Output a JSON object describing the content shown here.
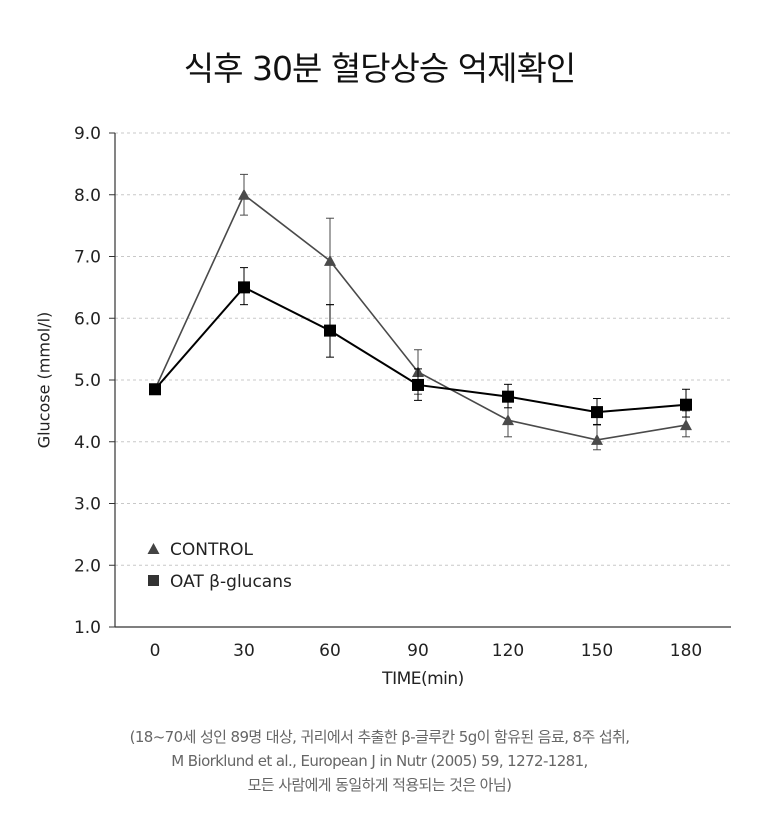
{
  "title": "식후 30분 혈당상승 억제확인",
  "chart_data": {
    "type": "line",
    "ylabel": "Glucose (mmol/l)",
    "xlabel": "TIME(min)",
    "x": [
      0,
      30,
      60,
      90,
      120,
      150,
      180
    ],
    "xticks": [
      "0",
      "30",
      "60",
      "90",
      "120",
      "150",
      "180"
    ],
    "yticks": [
      "1.0",
      "2.0",
      "3.0",
      "4.0",
      "5.0",
      "6.0",
      "7.0",
      "8.0",
      "9.0"
    ],
    "ylim": [
      1.0,
      9.0
    ],
    "grid": "horizontal dashed",
    "legend": "lower-left",
    "series": [
      {
        "name": "CONTROL",
        "marker": "triangle",
        "color": "#4a4a4a",
        "values": [
          4.85,
          8.0,
          6.93,
          5.13,
          4.35,
          4.03,
          4.27
        ],
        "error_upper": [
          null,
          8.33,
          7.62,
          5.49,
          4.72,
          4.27,
          4.5
        ],
        "error_lower": [
          null,
          7.67,
          6.22,
          4.77,
          4.08,
          3.87,
          4.08
        ]
      },
      {
        "name": "OAT β-glucans",
        "marker": "square",
        "color": "#000000",
        "values": [
          4.85,
          6.5,
          5.8,
          4.92,
          4.73,
          4.48,
          4.6
        ],
        "error_upper": [
          null,
          6.82,
          6.22,
          5.18,
          4.93,
          4.7,
          4.85
        ],
        "error_lower": [
          null,
          6.22,
          5.37,
          4.67,
          4.55,
          4.28,
          4.4
        ]
      }
    ]
  },
  "footnote": [
    "(18~70세 성인 89명 대상, 귀리에서 추출한  β-글루칸 5g이 함유된 음료, 8주 섭취,",
    "M Biorklund et al., European J in Nutr (2005) 59, 1272-1281,",
    "모든 사람에게 동일하게 적용되는 것은 아님)"
  ]
}
